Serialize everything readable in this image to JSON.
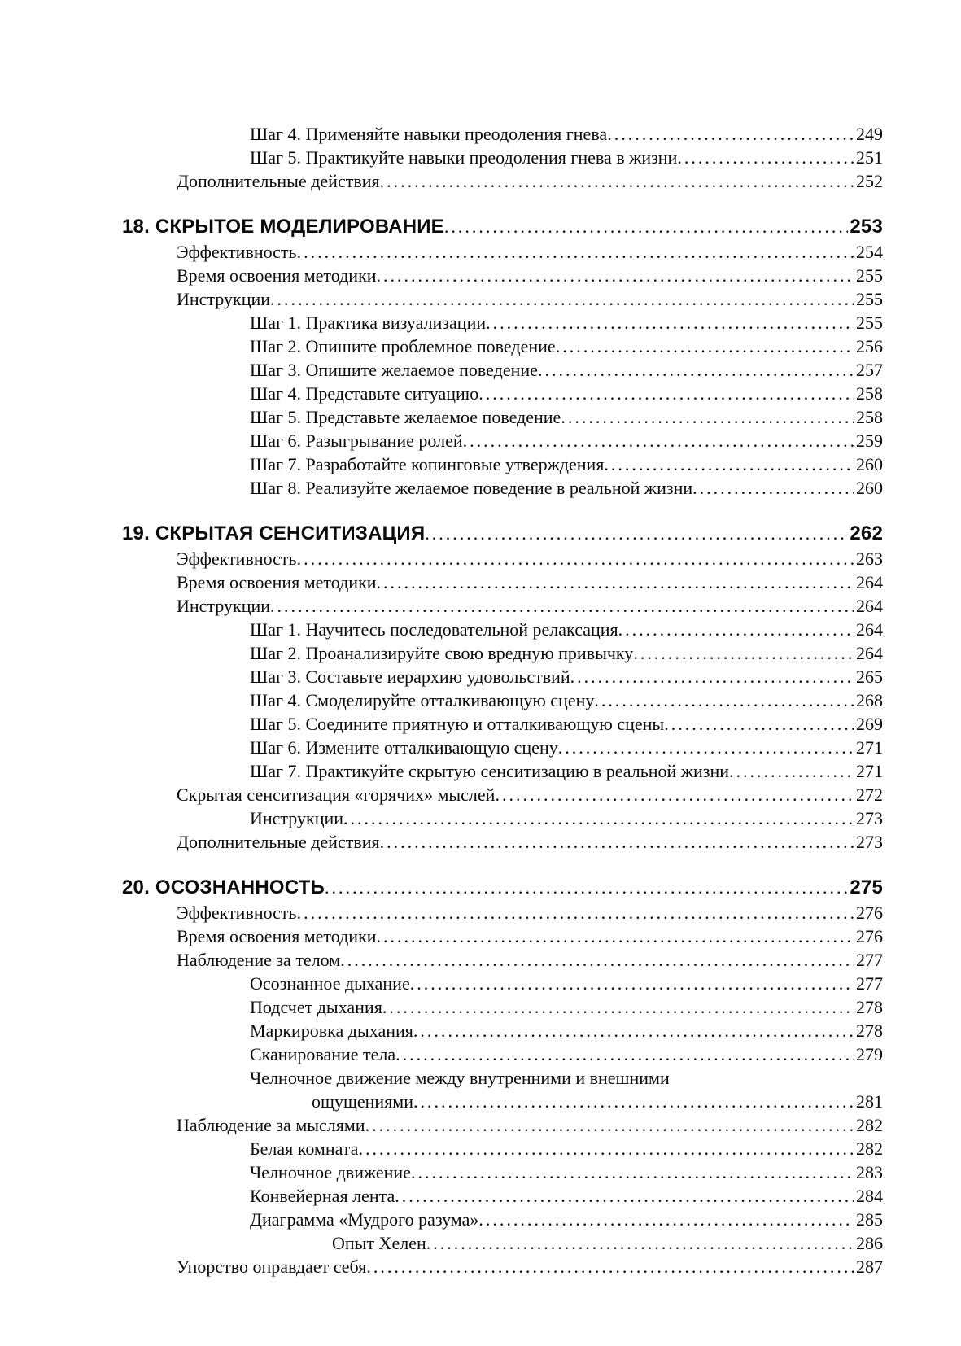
{
  "toc": {
    "sections": [
      {
        "header": null,
        "entries": [
          {
            "level": 2,
            "label": "Шаг 4. Применяйте навыки преодоления гнева",
            "page": "249"
          },
          {
            "level": 2,
            "label": "Шаг 5. Практикуйте навыки преодоления гнева в жизни",
            "page": "251"
          },
          {
            "level": 1,
            "label": "Дополнительные действия",
            "page": "252"
          }
        ]
      },
      {
        "header": {
          "label": "18. СКРЫТОЕ МОДЕЛИРОВАНИЕ",
          "page": "253"
        },
        "entries": [
          {
            "level": 1,
            "label": "Эффективность",
            "page": "254"
          },
          {
            "level": 1,
            "label": "Время освоения методики",
            "page": "255"
          },
          {
            "level": 1,
            "label": "Инструкции",
            "page": "255"
          },
          {
            "level": 2,
            "label": "Шаг 1. Практика визуализации",
            "page": "255"
          },
          {
            "level": 2,
            "label": "Шаг 2. Опишите проблемное поведение",
            "page": "256"
          },
          {
            "level": 2,
            "label": "Шаг 3. Опишите желаемое поведение",
            "page": "257"
          },
          {
            "level": 2,
            "label": "Шаг 4. Представьте ситуацию",
            "page": "258"
          },
          {
            "level": 2,
            "label": "Шаг 5. Представьте желаемое поведение",
            "page": "258"
          },
          {
            "level": 2,
            "label": "Шаг 6. Разыгрывание ролей",
            "page": "259"
          },
          {
            "level": 2,
            "label": "Шаг 7. Разработайте копинговые утверждения",
            "page": "260"
          },
          {
            "level": 2,
            "label": "Шаг 8. Реализуйте желаемое поведение в реальной жизни",
            "page": "260"
          }
        ]
      },
      {
        "header": {
          "label": "19. СКРЫТАЯ СЕНСИТИЗАЦИЯ",
          "page": "262"
        },
        "entries": [
          {
            "level": 1,
            "label": "Эффективность",
            "page": "263"
          },
          {
            "level": 1,
            "label": "Время освоения методики",
            "page": "264"
          },
          {
            "level": 1,
            "label": "Инструкции",
            "page": "264"
          },
          {
            "level": 2,
            "label": "Шаг 1. Научитесь последовательной релаксация",
            "page": "264"
          },
          {
            "level": 2,
            "label": "Шаг 2. Проанализируйте свою вредную привычку",
            "page": "264"
          },
          {
            "level": 2,
            "label": "Шаг 3. Составьте иерархию удовольствий",
            "page": "265"
          },
          {
            "level": 2,
            "label": "Шаг 4. Смоделируйте отталкивающую сцену",
            "page": "268"
          },
          {
            "level": 2,
            "label": "Шаг 5. Соедините приятную и отталкивающую сцены",
            "page": "269"
          },
          {
            "level": 2,
            "label": "Шаг 6. Измените отталкивающую сцену",
            "page": "271"
          },
          {
            "level": 2,
            "label": "Шаг 7. Практикуйте скрытую сенситизацию в реальной жизни",
            "page": "271"
          },
          {
            "level": 1,
            "label": "Скрытая сенситизация «горячих» мыслей",
            "page": "272"
          },
          {
            "level": 2,
            "label": "Инструкции",
            "page": "273"
          },
          {
            "level": 1,
            "label": "Дополнительные действия",
            "page": "273"
          }
        ]
      },
      {
        "header": {
          "label": "20. ОСОЗНАННОСТЬ",
          "page": "275"
        },
        "entries": [
          {
            "level": 1,
            "label": "Эффективность",
            "page": "276"
          },
          {
            "level": 1,
            "label": "Время освоения методики",
            "page": "276"
          },
          {
            "level": 1,
            "label": "Наблюдение за телом",
            "page": "277"
          },
          {
            "level": 2,
            "label": "Осознанное дыхание",
            "page": "277"
          },
          {
            "level": 2,
            "label": "Подсчет дыхания",
            "page": "278"
          },
          {
            "level": 2,
            "label": "Маркировка дыхания",
            "page": "278"
          },
          {
            "level": 2,
            "label": "Сканирование тела",
            "page": "279"
          },
          {
            "level": 2,
            "label": "Челночное движение между внутренними и внешними",
            "wrap_label": "ощущениями",
            "wrap_level": 3,
            "page": "281"
          },
          {
            "level": 1,
            "label": "Наблюдение за мыслями",
            "page": "282"
          },
          {
            "level": 2,
            "label": "Белая комната",
            "page": "282"
          },
          {
            "level": 2,
            "label": "Челночное движение",
            "page": "283"
          },
          {
            "level": 2,
            "label": "Конвейерная лента",
            "page": "284"
          },
          {
            "level": 2,
            "label": "Диаграмма «Мудрого разума»",
            "page": "285"
          },
          {
            "level": 4,
            "label": "Опыт Хелен",
            "page": "286"
          },
          {
            "level": 1,
            "label": "Упорство оправдает себя",
            "page": "287"
          }
        ]
      }
    ]
  }
}
